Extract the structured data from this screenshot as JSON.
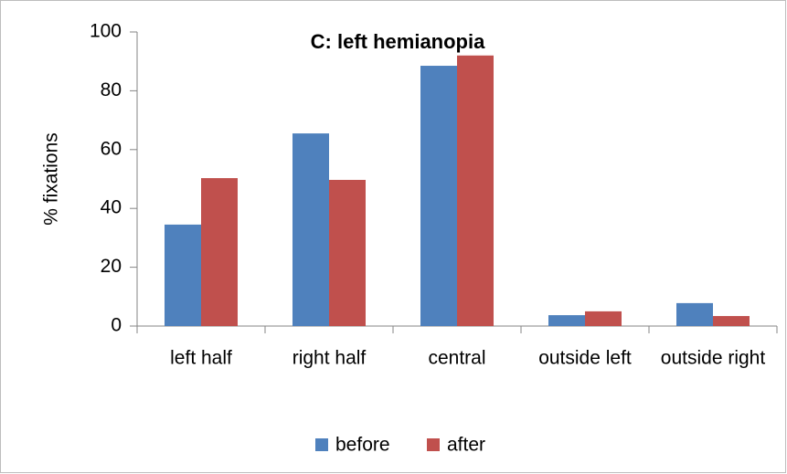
{
  "chart_data": {
    "type": "bar",
    "title": "C: left hemianopia",
    "y_label": "% fixations",
    "categories": [
      "left half",
      "right half",
      "central",
      "outside left",
      "outside right"
    ],
    "series": [
      {
        "name": "before",
        "color": "#4f81bd",
        "values": [
          34.5,
          65.5,
          88.5,
          3.7,
          7.8
        ]
      },
      {
        "name": "after",
        "color": "#c0504d",
        "values": [
          50.3,
          49.7,
          92,
          5,
          3.4
        ]
      }
    ],
    "ylim": [
      0,
      100
    ],
    "yticks": [
      0,
      20,
      40,
      60,
      80,
      100
    ],
    "grid": false,
    "legend": "bottom"
  }
}
